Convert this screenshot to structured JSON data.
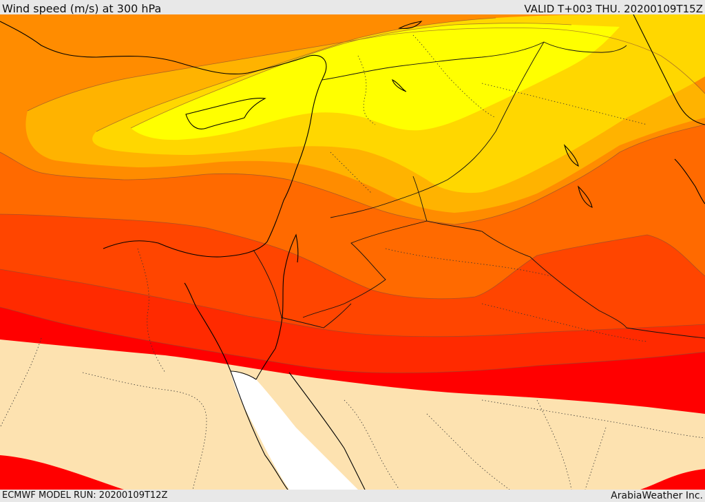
{
  "header": {
    "title": "Wind speed (m/s) at 300 hPa",
    "valid": "VALID T+003 THU. 20200109T15Z"
  },
  "footer": {
    "model_run": "ECMWF MODEL RUN: 20200109T12Z",
    "credit": "ArabiaWeather Inc."
  },
  "map": {
    "variable": "wind speed",
    "level": "300 hPa",
    "colors": {
      "calm": "#fde2b0",
      "band_1": "#ff0000",
      "band_2": "#ff2a00",
      "band_3": "#ff4500",
      "band_4": "#ff6a00",
      "band_5": "#ff8c00",
      "band_6": "#ffb300",
      "band_7": "#ffd700",
      "band_8": "#ffff00",
      "sea_gap": "#ffffff"
    }
  }
}
